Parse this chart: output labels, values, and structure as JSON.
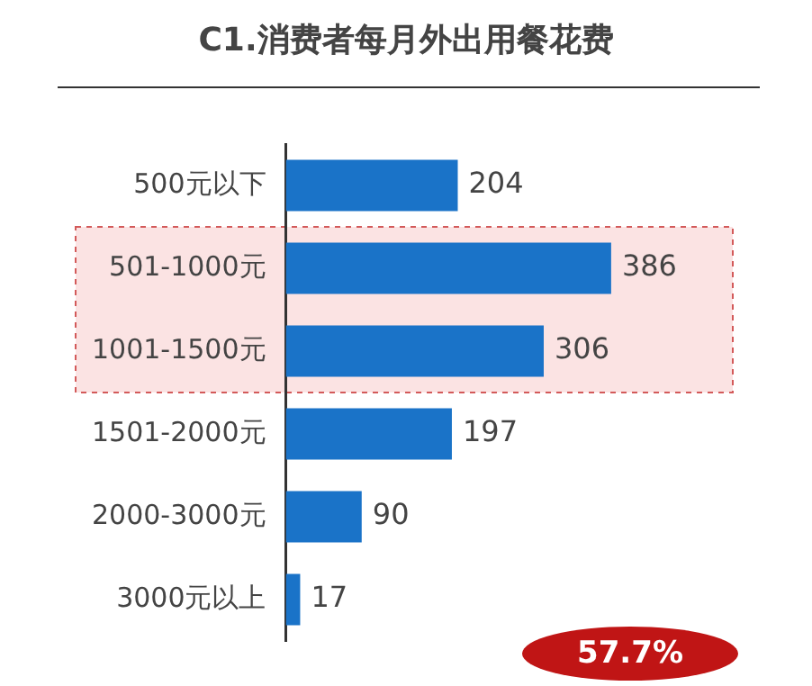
{
  "chart_data": {
    "type": "bar",
    "orientation": "horizontal",
    "title": "C1.消费者每月外出用餐花费",
    "categories": [
      "500元以下",
      "501-1000元",
      "1001-1500元",
      "1501-2000元",
      "2000-3000元",
      "3000元以上"
    ],
    "values": [
      204,
      386,
      306,
      197,
      90,
      17
    ],
    "color": "#1a73c8",
    "data_labels": true,
    "grid": false,
    "legend": false,
    "bands": [
      {
        "axis": "y",
        "from": "501-1000元",
        "to": "1001-1500元",
        "color": "#fbe3e3"
      }
    ],
    "annotations": [
      "57.7%"
    ]
  }
}
